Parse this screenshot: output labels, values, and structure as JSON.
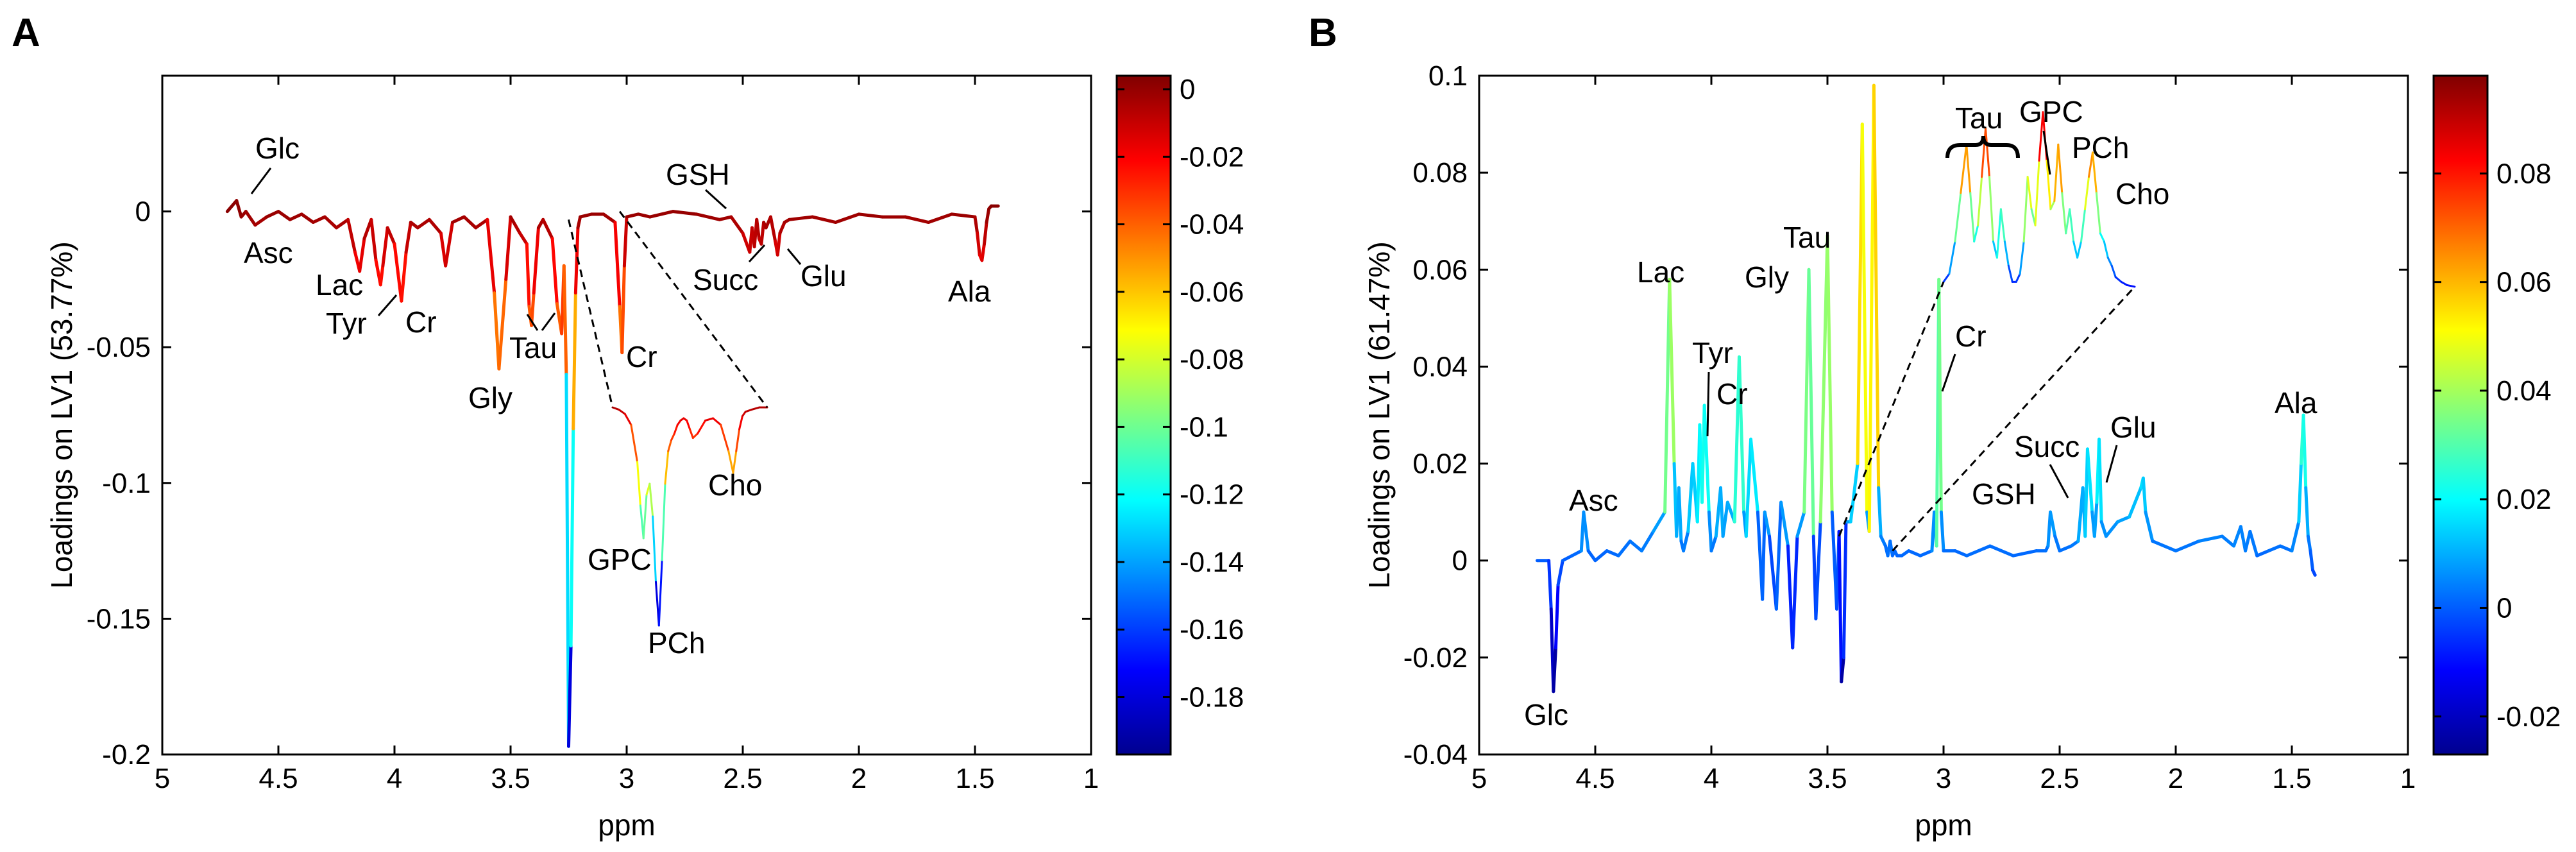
{
  "figure": {
    "description_labels": [
      "A",
      "B"
    ]
  },
  "chart_data": [
    {
      "panel_label": "A",
      "type": "line",
      "xlabel": "ppm",
      "ylabel": "Loadings on LV1 (53.77%)",
      "xlim": [
        5,
        1
      ],
      "ylim": [
        -0.2,
        0.05
      ],
      "xticks": [
        5,
        4.5,
        4,
        3.5,
        3,
        2.5,
        2,
        1.5,
        1
      ],
      "xtick_labels": [
        "5",
        "4.5",
        "4",
        "3.5",
        "3",
        "2.5",
        "2",
        "1.5",
        "1"
      ],
      "yticks": [
        0,
        -0.05,
        -0.1,
        -0.15,
        -0.2
      ],
      "ytick_labels": [
        "0",
        "-0.05",
        "-0.1",
        "-0.15",
        "-0.2"
      ],
      "colormap": "jet",
      "color_range": [
        -0.197,
        0.004
      ],
      "colorbar_ticks": [
        0,
        -0.02,
        -0.04,
        -0.06,
        -0.08,
        -0.1,
        -0.12,
        -0.14,
        -0.16,
        -0.18
      ],
      "colorbar_labels": [
        "0",
        "-0.02",
        "-0.04",
        "-0.06",
        "-0.08",
        "-0.1",
        "-0.12",
        "-0.14",
        "-0.16",
        "-0.18"
      ],
      "baseline": 0,
      "x": [
        4.72,
        4.68,
        4.66,
        4.64,
        4.6,
        4.55,
        4.5,
        4.45,
        4.4,
        4.35,
        4.3,
        4.25,
        4.2,
        4.17,
        4.15,
        4.13,
        4.1,
        4.08,
        4.06,
        4.05,
        4.03,
        4.0,
        3.97,
        3.95,
        3.93,
        3.9,
        3.85,
        3.8,
        3.78,
        3.75,
        3.7,
        3.65,
        3.6,
        3.57,
        3.55,
        3.52,
        3.5,
        3.48,
        3.46,
        3.43,
        3.42,
        3.41,
        3.4,
        3.38,
        3.36,
        3.32,
        3.3,
        3.28,
        3.27,
        3.26,
        3.25,
        3.24,
        3.23,
        3.22,
        3.21,
        3.2,
        3.15,
        3.1,
        3.05,
        3.03,
        3.02,
        3.01,
        3.0,
        2.95,
        2.9,
        2.8,
        2.7,
        2.6,
        2.55,
        2.5,
        2.47,
        2.46,
        2.45,
        2.44,
        2.43,
        2.42,
        2.41,
        2.4,
        2.38,
        2.36,
        2.35,
        2.34,
        2.32,
        2.3,
        2.2,
        2.1,
        2.0,
        1.9,
        1.8,
        1.7,
        1.6,
        1.5,
        1.49,
        1.48,
        1.47,
        1.46,
        1.45,
        1.44,
        1.43,
        1.4
      ],
      "y": [
        0,
        0.004,
        -0.002,
        0,
        -0.005,
        -0.002,
        0,
        -0.003,
        -0.001,
        -0.004,
        -0.002,
        -0.006,
        -0.003,
        -0.015,
        -0.022,
        -0.01,
        -0.003,
        -0.018,
        -0.027,
        -0.02,
        -0.006,
        -0.012,
        -0.033,
        -0.015,
        -0.004,
        -0.006,
        -0.003,
        -0.008,
        -0.02,
        -0.004,
        -0.002,
        -0.006,
        -0.003,
        -0.03,
        -0.058,
        -0.025,
        -0.002,
        -0.005,
        -0.008,
        -0.012,
        -0.035,
        -0.042,
        -0.03,
        -0.006,
        -0.003,
        -0.01,
        -0.034,
        -0.045,
        -0.02,
        -0.06,
        -0.197,
        -0.16,
        -0.08,
        -0.03,
        -0.006,
        -0.002,
        -0.001,
        -0.001,
        -0.004,
        -0.035,
        -0.052,
        -0.02,
        -0.002,
        -0.001,
        -0.002,
        0,
        -0.001,
        -0.003,
        -0.002,
        -0.008,
        -0.015,
        -0.006,
        -0.013,
        -0.003,
        -0.01,
        -0.012,
        -0.004,
        -0.006,
        -0.002,
        -0.011,
        -0.016,
        -0.008,
        -0.004,
        -0.003,
        -0.002,
        -0.004,
        -0.001,
        -0.002,
        -0.002,
        -0.004,
        -0.001,
        -0.002,
        -0.008,
        -0.016,
        -0.018,
        -0.012,
        -0.004,
        0.001,
        0.002,
        0.002
      ],
      "inset": {
        "description": "zoom of 3.3-2.4 ppm region",
        "x": [
          0,
          0.04,
          0.08,
          0.12,
          0.16,
          0.18,
          0.2,
          0.22,
          0.24,
          0.26,
          0.28,
          0.3,
          0.32,
          0.34,
          0.36,
          0.38,
          0.4,
          0.42,
          0.44,
          0.46,
          0.48,
          0.5,
          0.52,
          0.55,
          0.6,
          0.65,
          0.7,
          0.75,
          0.78,
          0.8,
          0.82,
          0.84,
          0.86,
          0.9,
          0.95,
          1.0
        ],
        "y": [
          0,
          -0.01,
          -0.03,
          -0.08,
          -0.25,
          -0.45,
          -0.6,
          -0.4,
          -0.35,
          -0.5,
          -0.8,
          -1.0,
          -0.7,
          -0.35,
          -0.2,
          -0.15,
          -0.12,
          -0.08,
          -0.06,
          -0.05,
          -0.06,
          -0.1,
          -0.14,
          -0.12,
          -0.06,
          -0.05,
          -0.08,
          -0.2,
          -0.3,
          -0.2,
          -0.1,
          -0.04,
          -0.02,
          -0.01,
          0,
          0
        ]
      },
      "annotations": [
        {
          "text": "Glc"
        },
        {
          "text": "Asc"
        },
        {
          "text": "Lac"
        },
        {
          "text": "Tyr"
        },
        {
          "text": "Cr"
        },
        {
          "text": "Gly"
        },
        {
          "text": "Tau"
        },
        {
          "text": "Cr"
        },
        {
          "text": "GSH"
        },
        {
          "text": "Succ"
        },
        {
          "text": "Glu"
        },
        {
          "text": "Ala"
        },
        {
          "text": "Cho"
        },
        {
          "text": "GPC"
        },
        {
          "text": "PCh"
        }
      ]
    },
    {
      "panel_label": "B",
      "type": "line",
      "xlabel": "ppm",
      "ylabel": "Loadings on LV1 (61.47%)",
      "xlim": [
        5,
        1
      ],
      "ylim": [
        -0.04,
        0.1
      ],
      "xticks": [
        5,
        4.5,
        4,
        3.5,
        3,
        2.5,
        2,
        1.5,
        1
      ],
      "xtick_labels": [
        "5",
        "4.5",
        "4",
        "3.5",
        "3",
        "2.5",
        "2",
        "1.5",
        "1"
      ],
      "yticks": [
        0.1,
        0.08,
        0.06,
        0.04,
        0.02,
        0,
        -0.02,
        -0.04
      ],
      "ytick_labels": [
        "0.1",
        "0.08",
        "0.06",
        "0.04",
        "0.02",
        "0",
        "-0.02",
        "-0.04"
      ],
      "colormap": "jet",
      "color_range": [
        -0.027,
        0.098
      ],
      "colorbar_ticks": [
        0.08,
        0.06,
        0.04,
        0.02,
        0,
        -0.02
      ],
      "colorbar_labels": [
        "0.08",
        "0.06",
        "0.04",
        "0.02",
        "0",
        "-0.02"
      ],
      "baseline": 0,
      "x": [
        4.75,
        4.7,
        4.69,
        4.68,
        4.67,
        4.66,
        4.64,
        4.6,
        4.56,
        4.55,
        4.53,
        4.5,
        4.45,
        4.4,
        4.35,
        4.3,
        4.25,
        4.2,
        4.18,
        4.16,
        4.15,
        4.14,
        4.13,
        4.12,
        4.1,
        4.08,
        4.06,
        4.05,
        4.04,
        4.03,
        4.01,
        4.0,
        3.98,
        3.96,
        3.95,
        3.93,
        3.9,
        3.88,
        3.86,
        3.85,
        3.83,
        3.8,
        3.78,
        3.77,
        3.75,
        3.72,
        3.7,
        3.67,
        3.65,
        3.63,
        3.6,
        3.58,
        3.56,
        3.55,
        3.53,
        3.5,
        3.48,
        3.46,
        3.45,
        3.44,
        3.43,
        3.42,
        3.4,
        3.37,
        3.35,
        3.33,
        3.32,
        3.3,
        3.28,
        3.27,
        3.26,
        3.25,
        3.24,
        3.23,
        3.22,
        3.21,
        3.2,
        3.18,
        3.15,
        3.1,
        3.05,
        3.04,
        3.03,
        3.02,
        3.01,
        3.0,
        2.95,
        2.9,
        2.8,
        2.7,
        2.6,
        2.56,
        2.55,
        2.54,
        2.52,
        2.5,
        2.45,
        2.42,
        2.4,
        2.39,
        2.38,
        2.36,
        2.35,
        2.34,
        2.33,
        2.32,
        2.3,
        2.25,
        2.2,
        2.15,
        2.14,
        2.13,
        2.1,
        2.0,
        1.9,
        1.8,
        1.75,
        1.72,
        1.7,
        1.68,
        1.65,
        1.6,
        1.55,
        1.5,
        1.47,
        1.46,
        1.45,
        1.44,
        1.43,
        1.42,
        1.41,
        1.4
      ],
      "y": [
        0,
        0,
        -0.01,
        -0.027,
        -0.018,
        -0.005,
        0,
        0.001,
        0.002,
        0.01,
        0.002,
        0,
        0.002,
        0.001,
        0.004,
        0.002,
        0.006,
        0.01,
        0.058,
        0.02,
        0.005,
        0.015,
        0.004,
        0.002,
        0.006,
        0.02,
        0.008,
        0.028,
        0.012,
        0.032,
        0.01,
        0.002,
        0.005,
        0.015,
        0.005,
        0.012,
        0.008,
        0.042,
        0.01,
        0.005,
        0.025,
        0.01,
        -0.008,
        0.01,
        0.005,
        -0.01,
        0.012,
        0.003,
        -0.018,
        0.005,
        0.01,
        0.06,
        0.005,
        -0.012,
        0.008,
        0.067,
        0.01,
        -0.01,
        0.006,
        -0.025,
        -0.02,
        0.008,
        0.008,
        0.02,
        0.09,
        0.01,
        0.006,
        0.098,
        0.015,
        0.005,
        0.004,
        0.003,
        0.001,
        0.004,
        0.001,
        0.002,
        0.001,
        0.001,
        0.002,
        0.001,
        0.002,
        0.01,
        0.003,
        0.058,
        0.01,
        0.002,
        0.002,
        0.001,
        0.003,
        0.001,
        0.002,
        0.002,
        0.003,
        0.01,
        0.005,
        0.002,
        0.003,
        0.004,
        0.015,
        0.005,
        0.023,
        0.01,
        0.005,
        0.012,
        0.025,
        0.008,
        0.005,
        0.008,
        0.009,
        0.015,
        0.017,
        0.01,
        0.004,
        0.002,
        0.004,
        0.005,
        0.003,
        0.007,
        0.002,
        0.006,
        0.001,
        0.002,
        0.003,
        0.002,
        0.008,
        0.02,
        0.03,
        0.015,
        0.005,
        0.002,
        -0.002,
        -0.003
      ],
      "inset": {
        "description": "zoom of 3.3-2.2 ppm region",
        "x": [
          0,
          0.03,
          0.06,
          0.09,
          0.12,
          0.14,
          0.16,
          0.18,
          0.2,
          0.22,
          0.24,
          0.26,
          0.28,
          0.3,
          0.32,
          0.34,
          0.36,
          0.38,
          0.4,
          0.42,
          0.44,
          0.46,
          0.48,
          0.5,
          0.52,
          0.54,
          0.56,
          0.58,
          0.6,
          0.62,
          0.64,
          0.66,
          0.68,
          0.7,
          0.72,
          0.74,
          0.76,
          0.78,
          0.8,
          0.82,
          0.84,
          0.86,
          0.88,
          0.9,
          0.93,
          0.96,
          1.0
        ],
        "y": [
          0.05,
          0.1,
          0.3,
          0.6,
          0.9,
          0.6,
          0.3,
          0.4,
          0.7,
          1.0,
          0.7,
          0.3,
          0.2,
          0.5,
          0.3,
          0.15,
          0.05,
          0.05,
          0.1,
          0.3,
          0.7,
          0.5,
          0.4,
          0.8,
          1.1,
          0.8,
          0.5,
          0.55,
          0.9,
          0.6,
          0.35,
          0.5,
          0.3,
          0.2,
          0.3,
          0.5,
          0.7,
          0.85,
          0.6,
          0.35,
          0.3,
          0.2,
          0.15,
          0.08,
          0.05,
          0.03,
          0.02
        ]
      },
      "annotations": [
        {
          "text": "Lac"
        },
        {
          "text": "Tau"
        },
        {
          "text": "Gly"
        },
        {
          "text": "Tyr"
        },
        {
          "text": "Cr"
        },
        {
          "text": "Cr"
        },
        {
          "text": "Asc"
        },
        {
          "text": "Glc"
        },
        {
          "text": "Succ"
        },
        {
          "text": "Glu"
        },
        {
          "text": "GSH"
        },
        {
          "text": "Ala"
        },
        {
          "text": "Tau"
        },
        {
          "text": "GPC"
        },
        {
          "text": "PCh"
        },
        {
          "text": "Cho"
        }
      ]
    }
  ]
}
